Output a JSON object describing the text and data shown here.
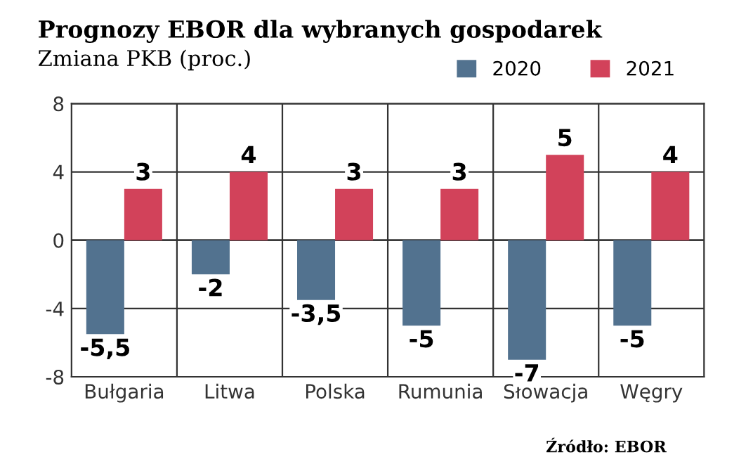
{
  "chart_data": {
    "type": "bar",
    "title": "Prognozy EBOR dla wybranych gospodarek",
    "subtitle": "Zmiana PKB (proc.)",
    "categories": [
      "Bułgaria",
      "Litwa",
      "Polska",
      "Rumunia",
      "Słowacja",
      "Węgry"
    ],
    "series": [
      {
        "name": "2020",
        "color": "#52728f",
        "values": [
          -5.5,
          -2,
          -3.5,
          -5,
          -7,
          -5
        ],
        "value_labels": [
          "-5,5",
          "-2",
          "-3,5",
          "-5",
          "-7",
          "-5"
        ]
      },
      {
        "name": "2021",
        "color": "#d2425a",
        "values": [
          3,
          4,
          3,
          3,
          5,
          4
        ],
        "value_labels": [
          "3",
          "4",
          "3",
          "3",
          "5",
          "4"
        ]
      }
    ],
    "ylim": [
      -8,
      8
    ],
    "yticks": [
      -8,
      -4,
      0,
      4,
      8
    ],
    "grid": true,
    "legend": "top right",
    "annotations": [
      "Źródło: EBOR"
    ]
  }
}
